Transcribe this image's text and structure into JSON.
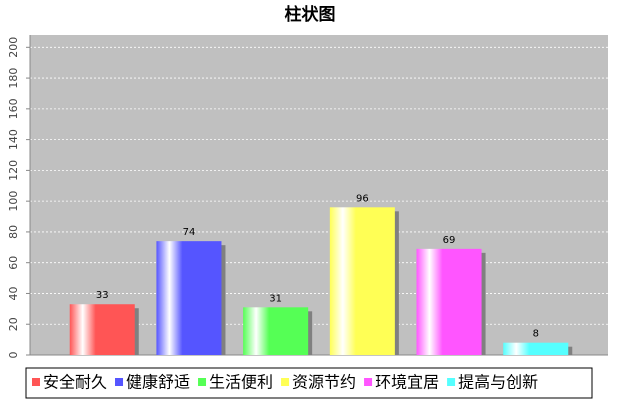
{
  "chart_data": {
    "type": "bar",
    "title": "柱状图",
    "categories": [
      null
    ],
    "series": [
      {
        "name": "安全耐久",
        "color": "#ff5555",
        "values": [
          33
        ]
      },
      {
        "name": "健康舒适",
        "color": "#5555ff",
        "values": [
          74
        ]
      },
      {
        "name": "生活便利",
        "color": "#55ff55",
        "values": [
          31
        ]
      },
      {
        "name": "资源节约",
        "color": "#ffff55",
        "values": [
          96
        ]
      },
      {
        "name": "环境宜居",
        "color": "#ff55ff",
        "values": [
          69
        ]
      },
      {
        "name": "提高与创新",
        "color": "#55ffff",
        "values": [
          8
        ]
      }
    ],
    "ylim": [
      0,
      208
    ],
    "yticks": [
      0,
      20,
      40,
      60,
      80,
      100,
      120,
      140,
      160,
      180,
      200
    ],
    "grid": true,
    "legend": "bottom",
    "value_labels_shown": true
  }
}
